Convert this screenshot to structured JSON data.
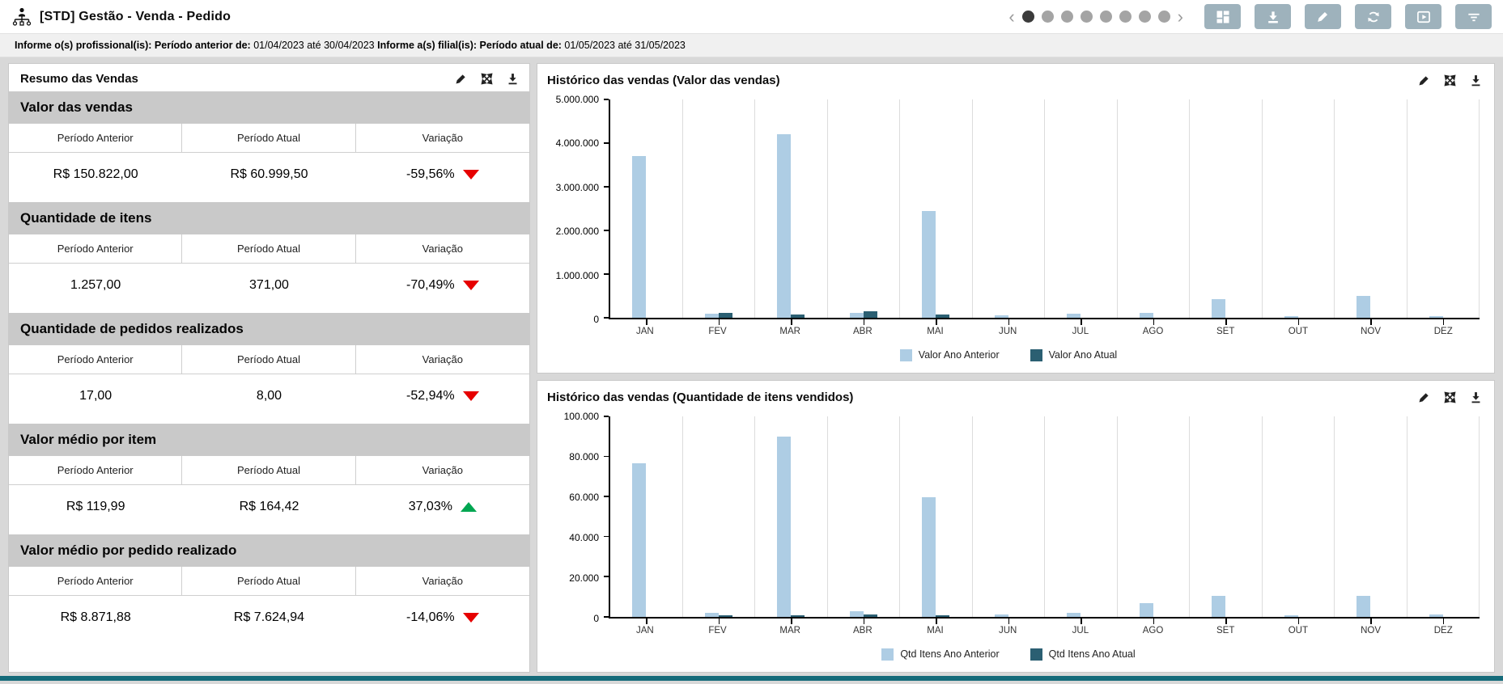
{
  "header": {
    "title": "[STD] Gestão - Venda - Pedido",
    "pagination": {
      "dot_count": 8,
      "active_index": 0
    },
    "toolbar": [
      "dashboard",
      "download",
      "edit",
      "refresh",
      "play",
      "filter"
    ]
  },
  "filter_bar": {
    "label1": "Informe o(s) profissional(is): Período anterior de:",
    "value1": "01/04/2023 até 30/04/2023",
    "label2": "Informe a(s) filial(is): Período atual de:",
    "value2": "01/05/2023 até 31/05/2023"
  },
  "summary": {
    "title": "Resumo das Vendas",
    "columns": [
      "Período Anterior",
      "Período Atual",
      "Variação"
    ],
    "sections": [
      {
        "title": "Valor das vendas",
        "previous": "R$ 150.822,00",
        "current": "R$ 60.999,50",
        "variation": "-59,56%",
        "direction": "down"
      },
      {
        "title": "Quantidade de itens",
        "previous": "1.257,00",
        "current": "371,00",
        "variation": "-70,49%",
        "direction": "down"
      },
      {
        "title": "Quantidade de pedidos realizados",
        "previous": "17,00",
        "current": "8,00",
        "variation": "-52,94%",
        "direction": "down"
      },
      {
        "title": "Valor médio por item",
        "previous": "R$ 119,99",
        "current": "R$ 164,42",
        "variation": "37,03%",
        "direction": "up"
      },
      {
        "title": "Valor médio por pedido realizado",
        "previous": "R$ 8.871,88",
        "current": "R$ 7.624,94",
        "variation": "-14,06%",
        "direction": "down"
      }
    ]
  },
  "chart_data": [
    {
      "type": "bar",
      "title": "Histórico das vendas (Valor das vendas)",
      "categories": [
        "JAN",
        "FEV",
        "MAR",
        "ABR",
        "MAI",
        "JUN",
        "JUL",
        "AGO",
        "SET",
        "OUT",
        "NOV",
        "DEZ"
      ],
      "series": [
        {
          "name": "Valor Ano Anterior",
          "color": "#aecde4",
          "values": [
            3700000,
            100000,
            4200000,
            110000,
            2450000,
            50000,
            100000,
            110000,
            420000,
            30000,
            500000,
            45000
          ]
        },
        {
          "name": "Valor Ano Atual",
          "color": "#2b5f72",
          "values": [
            0,
            110000,
            70000,
            150000,
            70000,
            0,
            0,
            0,
            0,
            0,
            0,
            0
          ]
        }
      ],
      "ylim": [
        0,
        5000000
      ],
      "ytick_labels": [
        "5.000.000",
        "4.000.000",
        "3.000.000",
        "2.000.000",
        "1.000.000",
        "0"
      ],
      "grid": "vertical",
      "legend_position": "bottom"
    },
    {
      "type": "bar",
      "title": "Histórico das vendas (Quantidade de itens vendidos)",
      "categories": [
        "JAN",
        "FEV",
        "MAR",
        "ABR",
        "MAI",
        "JUN",
        "JUL",
        "AGO",
        "SET",
        "OUT",
        "NOV",
        "DEZ"
      ],
      "series": [
        {
          "name": "Qtd Itens Ano Anterior",
          "color": "#aecde4",
          "values": [
            76500,
            2200,
            89800,
            2700,
            59700,
            1300,
            2000,
            7000,
            10500,
            800,
            10500,
            1200
          ]
        },
        {
          "name": "Qtd Itens Ano Atual",
          "color": "#2b5f72",
          "values": [
            0,
            500,
            500,
            1300,
            500,
            0,
            0,
            0,
            0,
            0,
            0,
            0
          ]
        }
      ],
      "ylim": [
        0,
        100000
      ],
      "ytick_labels": [
        "100.000",
        "80.000",
        "60.000",
        "40.000",
        "20.000",
        "0"
      ],
      "grid": "vertical",
      "legend_position": "bottom"
    }
  ],
  "colors": {
    "bar_previous": "#aecde4",
    "bar_current": "#2b5f72",
    "negative": "#e60000",
    "positive": "#00a651",
    "toolbar_button": "#9eb2bc",
    "bottom_strip": "#156b7a"
  }
}
